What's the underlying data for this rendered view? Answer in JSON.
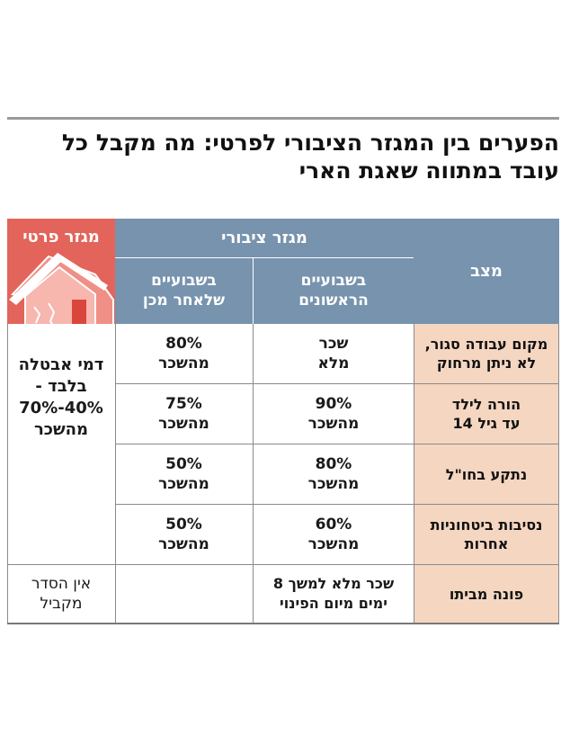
{
  "title": {
    "line1": "הפערים בין המגזר הציבורי לפרטי: מה מקבל כל",
    "line2": "עובד במתווה שאגת הארי"
  },
  "headers": {
    "private_sector": "מגזר פרטי",
    "public_sector": "מגזר ציבורי",
    "first_weeks": "בשבועיים\nהראשונים",
    "later_weeks": "בשבועיים\nשלאחר מכן",
    "state": "מצב"
  },
  "icons": {
    "private_sector": "house-icon"
  },
  "rows": [
    {
      "state": "מקום עבודה סגור,\nלא ניתן מרחוק",
      "first": "שכר\nמלא",
      "later": "80%\nמהשכר"
    },
    {
      "state": "הורה לילד\nעד גיל 14",
      "first": "90%\nמהשכר",
      "later": "75%\nמהשכר"
    },
    {
      "state": "נתקע בחו\"ל",
      "first": "80%\nמהשכר",
      "later": "50%\nמהשכר"
    },
    {
      "state": "נסיבות ביטחוניות\nאחרות",
      "first": "60%\nמהשכר",
      "later": "50%\nמהשכר"
    },
    {
      "state": "פונה מביתו",
      "first_and_later": "שכר מלא למשך 8\nימים מיום הפינוי",
      "private": "אין הסדר\nמקביל"
    }
  ],
  "private_merged": "דמי אבטלה\nבלבד -\n40%-70%\nמהשכר",
  "colors": {
    "header_blue": "#7793ad",
    "header_red": "#e3645a",
    "state_bg": "#f4d6c1"
  }
}
